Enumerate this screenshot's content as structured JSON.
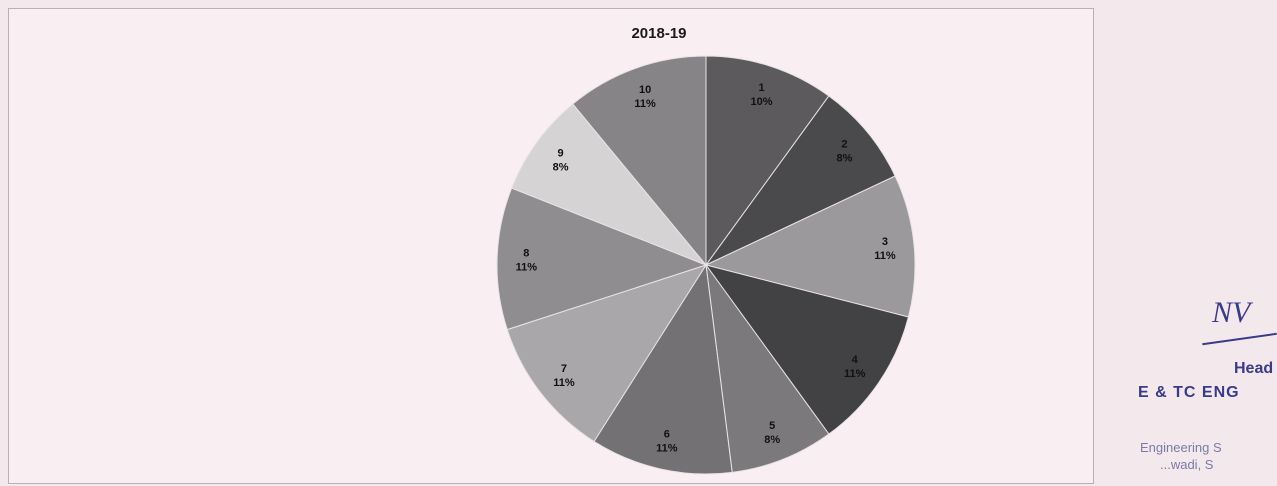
{
  "chart_data": {
    "type": "pie",
    "title": "2018-19",
    "slices": [
      {
        "label": "1",
        "percent_label": "10%",
        "value": 10,
        "color": "#5c5a5c"
      },
      {
        "label": "2",
        "percent_label": "8%",
        "value": 8,
        "color": "#4a494b"
      },
      {
        "label": "3",
        "percent_label": "11%",
        "value": 11,
        "color": "#9b999b"
      },
      {
        "label": "4",
        "percent_label": "11%",
        "value": 11,
        "color": "#424143"
      },
      {
        "label": "5",
        "percent_label": "8%",
        "value": 8,
        "color": "#7b797b"
      },
      {
        "label": "6",
        "percent_label": "11%",
        "value": 11,
        "color": "#737173"
      },
      {
        "label": "7",
        "percent_label": "11%",
        "value": 11,
        "color": "#a9a7a9"
      },
      {
        "label": "8",
        "percent_label": "11%",
        "value": 11,
        "color": "#8f8d8f"
      },
      {
        "label": "9",
        "percent_label": "8%",
        "value": 8,
        "color": "#d6d3d5"
      },
      {
        "label": "10",
        "percent_label": "11%",
        "value": 11,
        "color": "#868486"
      }
    ]
  },
  "stamp": {
    "signature": "NV",
    "line1": "Head",
    "line2": "E & TC ENG",
    "line3": "Engineering S",
    "line4": "...wadi, S"
  }
}
